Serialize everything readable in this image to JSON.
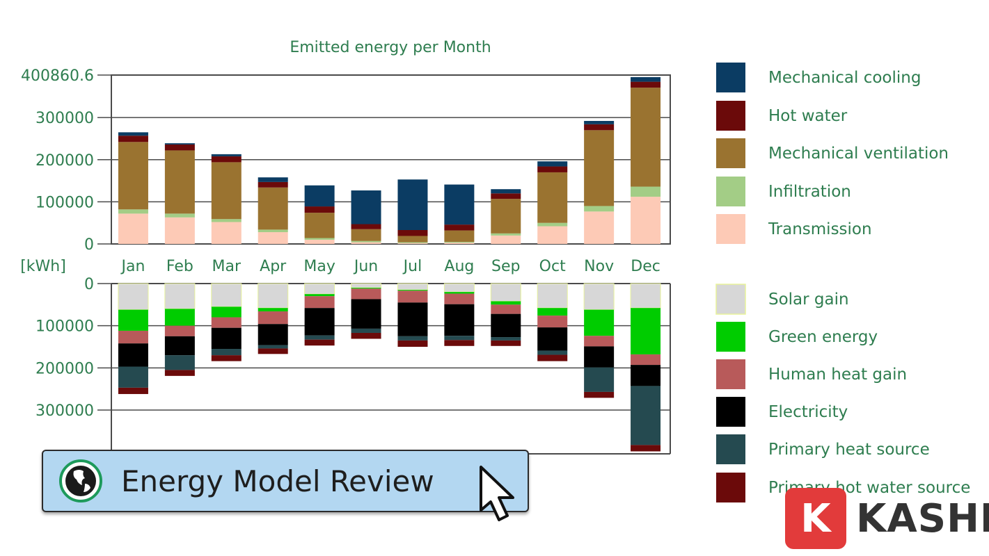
{
  "chart_data": {
    "type": "bar",
    "stacked": true,
    "title": "Emitted energy per Month",
    "unit_label": "[kWh]",
    "categories": [
      "Jan",
      "Feb",
      "Mar",
      "Apr",
      "May",
      "Jun",
      "Jul",
      "Aug",
      "Sep",
      "Oct",
      "Nov",
      "Dec"
    ],
    "upper": {
      "ylim": [
        0,
        400860.6
      ],
      "tick_labels": [
        "400860.6",
        "300000",
        "200000",
        "100000",
        "0"
      ],
      "series": [
        {
          "name": "Transmission",
          "color": "#fdcab6",
          "values": [
            72000,
            63000,
            52000,
            28000,
            10000,
            4000,
            2000,
            3000,
            20000,
            42000,
            77000,
            112000
          ]
        },
        {
          "name": "Infiltration",
          "color": "#a3cd86",
          "values": [
            10000,
            9000,
            7000,
            6000,
            4000,
            3000,
            2000,
            2000,
            5000,
            8000,
            13000,
            24000
          ]
        },
        {
          "name": "Mechanical ventilation",
          "color": "#9a7330",
          "values": [
            160000,
            150000,
            135000,
            100000,
            60000,
            28000,
            15000,
            27000,
            82000,
            120000,
            180000,
            235000
          ]
        },
        {
          "name": "Hot water",
          "color": "#6b0a0a",
          "values": [
            15000,
            14000,
            14000,
            13000,
            15000,
            12000,
            14000,
            14000,
            13000,
            14000,
            14000,
            14000
          ]
        },
        {
          "name": "Mechanical cooling",
          "color": "#0b3c63",
          "values": [
            8000,
            3000,
            5000,
            11000,
            50000,
            80000,
            120000,
            95000,
            10000,
            12000,
            8000,
            11000
          ]
        }
      ]
    },
    "lower": {
      "ylim": [
        0,
        400000
      ],
      "tick_labels": [
        "0",
        "100000",
        "200000",
        "300000"
      ],
      "series": [
        {
          "name": "Solar gain",
          "color": "#d7d7d7",
          "values": [
            62000,
            60000,
            55000,
            58000,
            25000,
            10000,
            15000,
            20000,
            42000,
            58000,
            62000,
            58000
          ]
        },
        {
          "name": "Green energy",
          "color": "#00cc00",
          "values": [
            50000,
            40000,
            25000,
            8000,
            5000,
            2000,
            2000,
            4000,
            8000,
            18000,
            62000,
            110000
          ]
        },
        {
          "name": "Human heat gain",
          "color": "#b85a5a",
          "values": [
            30000,
            25000,
            25000,
            30000,
            28000,
            25000,
            28000,
            25000,
            22000,
            28000,
            25000,
            25000
          ]
        },
        {
          "name": "Electricity",
          "color": "#000000",
          "values": [
            55000,
            45000,
            50000,
            50000,
            65000,
            70000,
            80000,
            75000,
            55000,
            55000,
            50000,
            50000
          ]
        },
        {
          "name": "Primary heat source",
          "color": "#254a50",
          "values": [
            50000,
            35000,
            15000,
            8000,
            10000,
            10000,
            10000,
            10000,
            8000,
            10000,
            58000,
            140000
          ]
        },
        {
          "name": "Primary hot water source",
          "color": "#6b0a0a",
          "values": [
            15000,
            14000,
            14000,
            13000,
            14000,
            14000,
            15000,
            14000,
            13000,
            15000,
            14000,
            15000
          ]
        }
      ]
    }
  },
  "button": {
    "label": "Energy Model Review"
  },
  "brand": {
    "badge_letter": "K",
    "name": "KASHI"
  }
}
